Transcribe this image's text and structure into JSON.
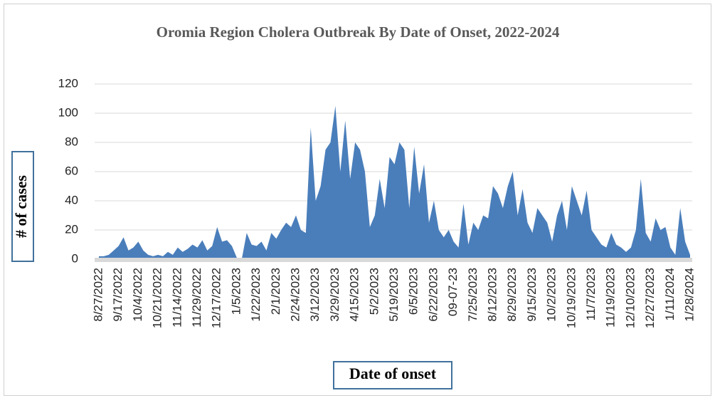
{
  "chart_data": {
    "type": "area",
    "title": "Oromia Region Cholera Outbreak By Date of Onset, 2022-2024",
    "x_label": "Date of onset",
    "y_label": "# of cases",
    "categories": [
      "8/27/2022",
      null,
      null,
      null,
      "9/17/2022",
      null,
      null,
      null,
      "10/4/2022",
      null,
      null,
      null,
      "10/21/2022",
      null,
      null,
      null,
      "11/14/2022",
      null,
      null,
      null,
      "11/29/2022",
      null,
      null,
      null,
      "12/17/2022",
      null,
      null,
      null,
      "1/5/2023",
      null,
      null,
      null,
      "1/22/2023",
      null,
      null,
      null,
      "2/1/2023",
      null,
      null,
      null,
      "2/24/2023",
      null,
      null,
      null,
      "3/12/2023",
      null,
      null,
      null,
      "3/29/2023",
      null,
      null,
      null,
      "4/15/2023",
      null,
      null,
      null,
      "5/2/2023",
      null,
      null,
      null,
      "5/19/2023",
      null,
      null,
      null,
      "6/5/2023",
      null,
      null,
      null,
      "6/22/2023",
      null,
      null,
      null,
      "09-07-23",
      null,
      null,
      null,
      "7/25/2023",
      null,
      null,
      null,
      "8/12/2023",
      null,
      null,
      null,
      "8/29/2023",
      null,
      null,
      null,
      "9/15/2023",
      null,
      null,
      null,
      "10/2/2023",
      null,
      null,
      null,
      "10/19/2023",
      null,
      null,
      null,
      "11/7/2023",
      null,
      null,
      null,
      "11/19/2023",
      null,
      null,
      null,
      "12/10/2023",
      null,
      null,
      null,
      "12/27/2023",
      null,
      null,
      null,
      "1/11/2024",
      null,
      null,
      null,
      "1/28/2024"
    ],
    "values": [
      2,
      2,
      3,
      6,
      9,
      15,
      6,
      8,
      12,
      6,
      3,
      2,
      3,
      2,
      5,
      3,
      8,
      5,
      7,
      10,
      8,
      13,
      6,
      9,
      22,
      12,
      13,
      9,
      1,
      0,
      18,
      10,
      9,
      12,
      6,
      18,
      14,
      20,
      25,
      22,
      30,
      20,
      18,
      90,
      40,
      50,
      75,
      80,
      105,
      60,
      95,
      55,
      80,
      75,
      60,
      22,
      30,
      55,
      35,
      70,
      65,
      80,
      75,
      35,
      77,
      45,
      65,
      25,
      40,
      20,
      15,
      20,
      12,
      8,
      38,
      10,
      25,
      20,
      30,
      28,
      50,
      45,
      35,
      50,
      60,
      30,
      48,
      25,
      18,
      35,
      30,
      25,
      12,
      30,
      40,
      20,
      50,
      40,
      30,
      47,
      20,
      15,
      10,
      8,
      18,
      10,
      8,
      5,
      8,
      20,
      55,
      18,
      12,
      28,
      20,
      22,
      8,
      3,
      35,
      12,
      3
    ],
    "color": "#4a7ebb",
    "ylim": [
      0,
      120
    ],
    "yticks": [
      0,
      20,
      40,
      60,
      80,
      100,
      120
    ],
    "grid": true
  }
}
